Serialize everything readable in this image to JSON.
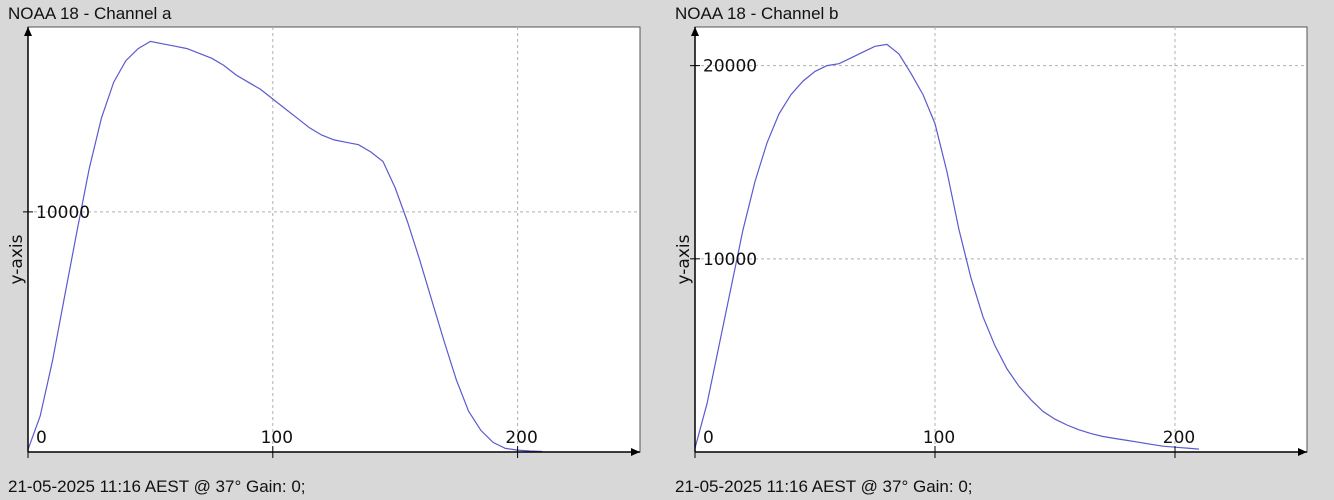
{
  "panels": [
    {
      "title": "NOAA 18 - Channel a",
      "footer": "21-05-2025 11:16 AEST @ 37° Gain: 0;"
    },
    {
      "title": "NOAA 18 - Channel b",
      "footer": "21-05-2025 11:16 AEST @ 37° Gain: 0;"
    }
  ],
  "colors": {
    "plot_bg": "#ffffff",
    "line": "#5a5ad0",
    "grid": "#b0b0b0",
    "axis": "#000000",
    "page_bg": "#d8d8d8"
  },
  "chart_data": [
    {
      "type": "line",
      "title": "NOAA 18 - Channel a",
      "xlabel": "",
      "ylabel": "y-axis",
      "xlim": [
        0,
        250
      ],
      "ylim": [
        0,
        17700
      ],
      "x_ticks": [
        0,
        100,
        200
      ],
      "y_ticks": [
        10000
      ],
      "grid": true,
      "series": [
        {
          "x": [
            0,
            5,
            10,
            15,
            20,
            25,
            30,
            35,
            40,
            45,
            50,
            55,
            60,
            65,
            70,
            75,
            80,
            85,
            90,
            95,
            100,
            105,
            110,
            115,
            120,
            125,
            130,
            135,
            140,
            145,
            150,
            155,
            160,
            165,
            170,
            175,
            180,
            185,
            190,
            195,
            200,
            205,
            210
          ],
          "y": [
            100,
            1500,
            3800,
            6500,
            9200,
            11800,
            13900,
            15400,
            16300,
            16800,
            17100,
            17000,
            16900,
            16800,
            16600,
            16400,
            16100,
            15700,
            15400,
            15100,
            14700,
            14300,
            13900,
            13500,
            13200,
            13000,
            12900,
            12800,
            12500,
            12100,
            11000,
            9600,
            8000,
            6300,
            4600,
            3000,
            1700,
            900,
            400,
            150,
            80,
            40,
            20
          ]
        }
      ]
    },
    {
      "type": "line",
      "title": "NOAA 18 - Channel b",
      "xlabel": "",
      "ylabel": "y-axis",
      "xlim": [
        0,
        255
      ],
      "ylim": [
        0,
        22000
      ],
      "x_ticks": [
        0,
        100,
        200
      ],
      "y_ticks": [
        10000,
        20000
      ],
      "grid": true,
      "series": [
        {
          "x": [
            0,
            5,
            10,
            15,
            20,
            25,
            30,
            35,
            40,
            45,
            50,
            55,
            60,
            65,
            70,
            75,
            80,
            85,
            90,
            95,
            100,
            105,
            110,
            115,
            120,
            125,
            130,
            135,
            140,
            145,
            150,
            155,
            160,
            165,
            170,
            175,
            180,
            185,
            190,
            195,
            200,
            205,
            210
          ],
          "y": [
            200,
            2500,
            5500,
            8500,
            11500,
            14000,
            16000,
            17500,
            18500,
            19200,
            19700,
            20000,
            20100,
            20400,
            20700,
            21000,
            21100,
            20600,
            19600,
            18500,
            17000,
            14500,
            11500,
            9000,
            7000,
            5500,
            4300,
            3400,
            2700,
            2100,
            1700,
            1400,
            1150,
            950,
            800,
            700,
            600,
            500,
            400,
            300,
            250,
            200,
            150
          ]
        }
      ]
    }
  ]
}
